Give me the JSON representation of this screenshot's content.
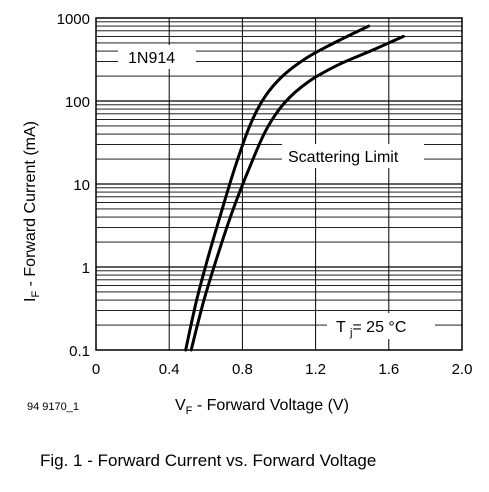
{
  "chart_data": {
    "type": "line",
    "x_scale": "linear",
    "y_scale": "log",
    "xlim": [
      0,
      2.0
    ],
    "ylim": [
      0.1,
      1000
    ],
    "x_ticks": [
      "0",
      "0.4",
      "0.8",
      "1.2",
      "1.6",
      "2.0"
    ],
    "y_ticks": [
      "0.1",
      "1",
      "10",
      "100",
      "1000"
    ],
    "xlabel": {
      "main": "V",
      "sub": "F",
      "rest": " - Forward Voltage (V)"
    },
    "ylabel": {
      "main": "I",
      "sub": "F",
      "rest": " - Forward Current (mA)"
    },
    "caption": "Fig. 1 - Forward Current vs. Forward Voltage",
    "figure_id": "94 9170_1",
    "annotations": {
      "device": "1N914",
      "scatter": "Scattering Limit",
      "temp": {
        "prefix": "T ",
        "sub": "j",
        "value": "= 25 °C"
      }
    },
    "grid": true,
    "series": [
      {
        "x": [
          0.49,
          0.55,
          0.62,
          0.69,
          0.76,
          0.84,
          0.92,
          1.02,
          1.15,
          1.3,
          1.49
        ],
        "y": [
          0.1,
          0.4,
          1.5,
          5,
          16,
          50,
          110,
          200,
          330,
          500,
          800
        ]
      },
      {
        "x": [
          0.52,
          0.59,
          0.67,
          0.75,
          0.84,
          0.93,
          1.03,
          1.16,
          1.32,
          1.5,
          1.68
        ],
        "y": [
          0.1,
          0.4,
          1.5,
          5,
          16,
          45,
          95,
          170,
          270,
          400,
          600
        ]
      }
    ]
  }
}
